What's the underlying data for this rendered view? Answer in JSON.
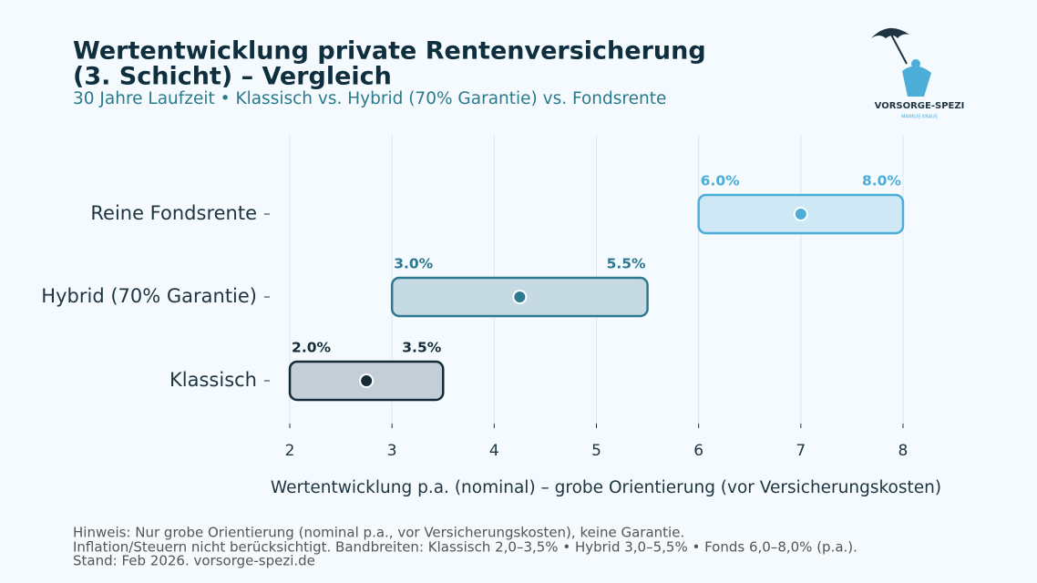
{
  "chart_data": {
    "type": "range_bar",
    "title": [
      "Wertentwicklung private Rentenversicherung",
      "(3. Schicht) – Vergleich"
    ],
    "subtitle": "30 Jahre Laufzeit • Klassisch vs. Hybrid (70% Garantie) vs. Fondsrente",
    "categories": [
      "Reine Fondsrente",
      "Hybrid (70% Garantie)",
      "Klassisch"
    ],
    "low": {
      "values": [
        6,
        3,
        2
      ],
      "value_labels": [
        "6.0%",
        "3.0%",
        "2.0%"
      ]
    },
    "high": {
      "values": [
        8,
        5.5,
        3.5
      ],
      "value_labels": [
        "8.0%",
        "5.5%",
        "3.5%"
      ]
    },
    "mid": {
      "values": [
        7,
        4.25,
        2.75
      ]
    },
    "colors": [
      "#4aaed9",
      "#2e7891",
      "#152b38"
    ],
    "fills": [
      "#cfe8f6",
      "#c5dae3",
      "#c4ced6"
    ],
    "xlim": [
      1.8,
      8.2
    ],
    "xticks": [
      2,
      3,
      4,
      5,
      6,
      7,
      8
    ],
    "grid": true,
    "xlabel": "Wertentwicklung p.a. (nominal) – grobe Orientierung (vor Versicherungskosten)",
    "notes": [
      "Hinweis: Nur grobe Orientierung (nominal p.a., vor Versicherungskosten), keine Garantie.",
      "Inflation/Steuern nicht berücksichtigt. Bandbreiten: Klassisch 2,0–3,5% • Hybrid 3,0–5,5% • Fonds 6,0–8,0% (p.a.).",
      "Stand: Feb 2026.  vorsorge-spezi.de"
    ],
    "logo": {
      "name": "VORSORGE-SPEZI",
      "author": "MARKUS KRAUS"
    }
  }
}
